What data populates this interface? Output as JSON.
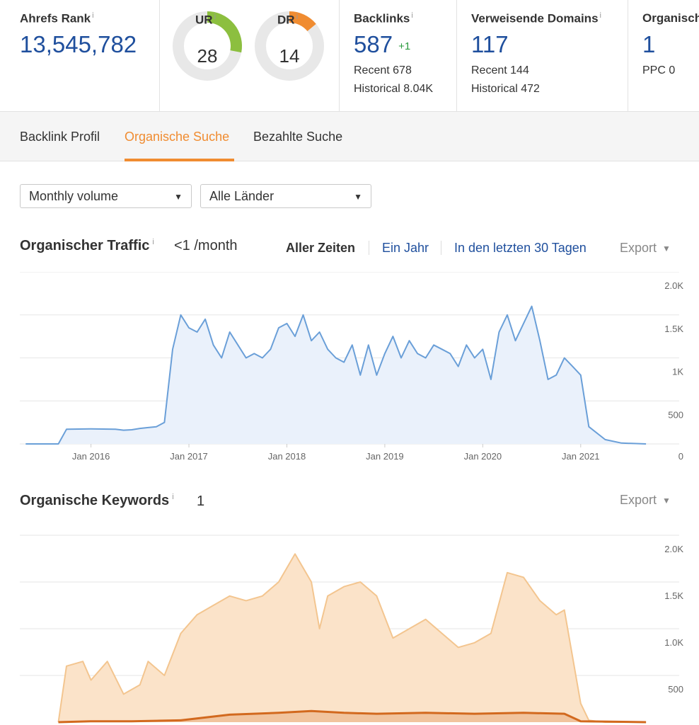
{
  "metrics": {
    "ahrefs_rank": {
      "label": "Ahrefs Rank",
      "info": "i",
      "value": "13,545,782"
    },
    "ur": {
      "label": "UR",
      "info": "i",
      "value": "28",
      "score": 28,
      "color": "#8cbf3f"
    },
    "dr": {
      "label": "DR",
      "info": "i",
      "value": "14",
      "score": 14,
      "color": "#f08c31"
    },
    "backlinks": {
      "label": "Backlinks",
      "info": "i",
      "value": "587",
      "delta": "+1",
      "recent": "Recent 678",
      "historical": "Historical 8.04K"
    },
    "ref_domains": {
      "label": "Verweisende Domains",
      "info": "i",
      "value": "117",
      "recent": "Recent 144",
      "historical": "Historical 472"
    },
    "organic": {
      "label": "Organisch",
      "value": "1",
      "ppc": "PPC 0"
    }
  },
  "tabs": [
    {
      "label": "Backlink Profil",
      "active": false
    },
    {
      "label": "Organische Suche",
      "active": true
    },
    {
      "label": "Bezahlte Suche",
      "active": false
    }
  ],
  "filters": {
    "volume": {
      "value": "Monthly volume"
    },
    "country": {
      "value": "Alle Länder"
    }
  },
  "traffic": {
    "title": "Organischer Traffic",
    "info": "i",
    "value": "<1 /month",
    "ranges": [
      "Aller Zeiten",
      "Ein Jahr",
      "In den letzten 30 Tagen"
    ],
    "active_range": "Aller Zeiten",
    "export": "Export"
  },
  "keywords": {
    "title": "Organische Keywords",
    "info": "i",
    "value": "1",
    "export": "Export"
  },
  "colors": {
    "accent": "#f08c31",
    "link": "#1f4f9d",
    "traffic_line": "#6a9fd8",
    "traffic_fill": "#eaf1fb",
    "keywords_light": "#f3c58f",
    "keywords_light_fill": "#fbe3c9",
    "keywords_dark": "#d2691e"
  },
  "chart_data": [
    {
      "type": "line",
      "ylim": [
        0,
        2000
      ],
      "yticks": [
        "2.0K",
        "1.5K",
        "1K",
        "500",
        "0"
      ],
      "xticks": [
        "Jan 2016",
        "Jan 2017",
        "Jan 2018",
        "Jan 2019",
        "Jan 2020",
        "Jan 2021"
      ],
      "grid": true,
      "series": [
        {
          "x": [
            "2015-05",
            "2015-09",
            "2015-10",
            "2016-01",
            "2016-04",
            "2016-05",
            "2016-06",
            "2016-07",
            "2016-08",
            "2016-09",
            "2016-10",
            "2016-11",
            "2016-12",
            "2017-01",
            "2017-02",
            "2017-03",
            "2017-04",
            "2017-05",
            "2017-06",
            "2017-07",
            "2017-08",
            "2017-09",
            "2017-10",
            "2017-11",
            "2017-12",
            "2018-01",
            "2018-02",
            "2018-03",
            "2018-04",
            "2018-05",
            "2018-06",
            "2018-07",
            "2018-08",
            "2018-09",
            "2018-10",
            "2018-11",
            "2018-12",
            "2019-01",
            "2019-02",
            "2019-03",
            "2019-04",
            "2019-05",
            "2019-06",
            "2019-07",
            "2019-08",
            "2019-09",
            "2019-10",
            "2019-11",
            "2019-12",
            "2020-01",
            "2020-02",
            "2020-03",
            "2020-04",
            "2020-05",
            "2020-06",
            "2020-07",
            "2020-08",
            "2020-09",
            "2020-10",
            "2020-11",
            "2020-12",
            "2021-01",
            "2021-02",
            "2021-04",
            "2021-06",
            "2021-09"
          ],
          "values": [
            0,
            0,
            170,
            175,
            170,
            160,
            165,
            180,
            190,
            200,
            250,
            1100,
            1500,
            1350,
            1300,
            1450,
            1150,
            1000,
            1300,
            1150,
            1000,
            1050,
            1000,
            1100,
            1350,
            1400,
            1250,
            1500,
            1200,
            1300,
            1100,
            1000,
            950,
            1150,
            800,
            1150,
            800,
            1050,
            1250,
            1000,
            1200,
            1050,
            1000,
            1150,
            1100,
            1050,
            900,
            1150,
            1000,
            1100,
            750,
            1300,
            1500,
            1200,
            1400,
            1600,
            1200,
            750,
            800,
            1000,
            900,
            800,
            200,
            50,
            10,
            0
          ]
        }
      ]
    },
    {
      "type": "area",
      "ylim": [
        0,
        2000
      ],
      "yticks": [
        "2.0K",
        "1.5K",
        "1.0K",
        "500"
      ],
      "grid": true,
      "series": [
        {
          "x": [
            "2015-09",
            "2015-10",
            "2015-12",
            "2016-01",
            "2016-03",
            "2016-05",
            "2016-07",
            "2016-08",
            "2016-10",
            "2016-12",
            "2017-02",
            "2017-04",
            "2017-06",
            "2017-08",
            "2017-10",
            "2017-12",
            "2018-02",
            "2018-04",
            "2018-05",
            "2018-06",
            "2018-08",
            "2018-10",
            "2018-12",
            "2019-02",
            "2019-04",
            "2019-06",
            "2019-08",
            "2019-10",
            "2019-12",
            "2020-02",
            "2020-04",
            "2020-06",
            "2020-08",
            "2020-10",
            "2020-11",
            "2021-01",
            "2021-02",
            "2021-04",
            "2021-09"
          ],
          "values": [
            0,
            600,
            650,
            450,
            650,
            300,
            400,
            650,
            500,
            950,
            1150,
            1250,
            1350,
            1300,
            1350,
            1500,
            1800,
            1500,
            1000,
            1350,
            1450,
            1500,
            1350,
            900,
            1000,
            1100,
            950,
            800,
            850,
            950,
            1600,
            1550,
            1300,
            1150,
            1200,
            200,
            20,
            0,
            0
          ]
        },
        {
          "x": [
            "2015-09",
            "2016-01",
            "2016-06",
            "2016-12",
            "2017-06",
            "2017-12",
            "2018-04",
            "2018-08",
            "2018-12",
            "2019-06",
            "2019-12",
            "2020-06",
            "2020-11",
            "2021-01",
            "2021-09"
          ],
          "values": [
            0,
            10,
            10,
            20,
            80,
            100,
            120,
            100,
            90,
            100,
            90,
            100,
            90,
            10,
            0
          ]
        }
      ]
    }
  ]
}
